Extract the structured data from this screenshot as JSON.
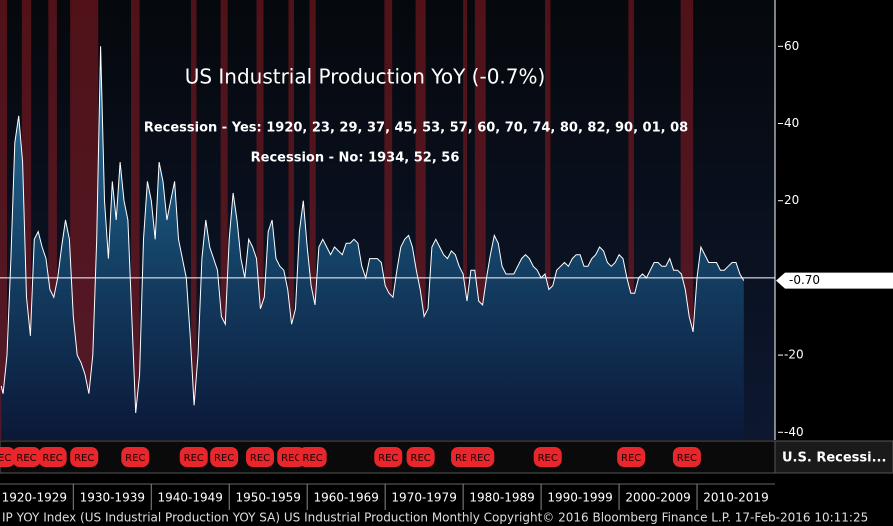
{
  "chart_data": {
    "type": "area",
    "title": "US Industrial Production YoY (-0.7%)",
    "annotations": [
      "Recession - Yes: 1920, 23, 29, 37, 45, 53, 57, 60, 70, 74, 80, 82, 90, 01, 08",
      "Recession - No: 1934, 52, 56"
    ],
    "footer": "IP YOY Index (US Industrial Production YOY SA) US Industrial Production  Monthly   Copyright© 2016 Bloomberg Finance L.P.    17-Feb-2016 10:11:25",
    "recession_label": "REC",
    "recession_legend": "U.S. Recessi...",
    "recession_color": "#8e1c22",
    "line_color": "#ffffff",
    "area_color": "#1d5f86",
    "last_label": {
      "value": -0.7,
      "label": "-0.70"
    },
    "xlim": [
      1920.6,
      2020
    ],
    "ylim": [
      -42,
      72
    ],
    "yticks": [
      -40,
      -20,
      20,
      40,
      60
    ],
    "xticks": [
      {
        "value": 1920,
        "label": "1920-1929"
      },
      {
        "value": 1930,
        "label": "1930-1939"
      },
      {
        "value": 1940,
        "label": "1940-1949"
      },
      {
        "value": 1950,
        "label": "1950-1959"
      },
      {
        "value": 1960,
        "label": "1960-1969"
      },
      {
        "value": 1970,
        "label": "1970-1979"
      },
      {
        "value": 1980,
        "label": "1980-1989"
      },
      {
        "value": 1990,
        "label": "1990-1999"
      },
      {
        "value": 2000,
        "label": "2000-2009"
      },
      {
        "value": 2010,
        "label": "2010-2019"
      }
    ],
    "recessions": [
      [
        1920.0,
        1921.5
      ],
      [
        1923.4,
        1924.6
      ],
      [
        1926.8,
        1927.9
      ],
      [
        1929.6,
        1933.2
      ],
      [
        1937.4,
        1938.5
      ],
      [
        1945.1,
        1945.8
      ],
      [
        1948.9,
        1949.8
      ],
      [
        1953.5,
        1954.4
      ],
      [
        1957.6,
        1958.3
      ],
      [
        1960.3,
        1961.1
      ],
      [
        1969.9,
        1970.9
      ],
      [
        1973.9,
        1975.2
      ],
      [
        1980.0,
        1980.5
      ],
      [
        1981.5,
        1982.9
      ],
      [
        1990.5,
        1991.2
      ],
      [
        2001.2,
        2001.9
      ],
      [
        2007.9,
        2009.5
      ]
    ],
    "x": [
      1920.75,
      1921,
      1921.5,
      1922,
      1922.5,
      1923,
      1923.5,
      1924,
      1924.5,
      1925,
      1925.5,
      1926,
      1926.5,
      1927,
      1927.5,
      1928,
      1928.5,
      1929,
      1929.5,
      1930,
      1930.5,
      1931,
      1931.5,
      1932,
      1932.5,
      1933,
      1933.5,
      1934,
      1934.5,
      1935,
      1935.5,
      1936,
      1936.5,
      1937,
      1937.5,
      1938,
      1938.5,
      1939,
      1939.5,
      1940,
      1940.5,
      1941,
      1941.5,
      1942,
      1942.5,
      1943,
      1943.5,
      1944,
      1944.5,
      1945,
      1945.5,
      1946,
      1946.5,
      1947,
      1947.5,
      1948,
      1948.5,
      1949,
      1949.5,
      1950,
      1950.5,
      1951,
      1951.5,
      1952,
      1952.5,
      1953,
      1953.5,
      1954,
      1954.5,
      1955,
      1955.5,
      1956,
      1956.5,
      1957,
      1957.5,
      1958,
      1958.5,
      1959,
      1959.5,
      1960,
      1960.5,
      1961,
      1961.5,
      1962,
      1962.5,
      1963,
      1963.5,
      1964,
      1964.5,
      1965,
      1965.5,
      1966,
      1966.5,
      1967,
      1967.5,
      1968,
      1968.5,
      1969,
      1969.5,
      1970,
      1970.5,
      1971,
      1971.5,
      1972,
      1972.5,
      1973,
      1973.5,
      1974,
      1974.5,
      1975,
      1975.5,
      1976,
      1976.5,
      1977,
      1977.5,
      1978,
      1978.5,
      1979,
      1979.5,
      1980,
      1980.5,
      1981,
      1981.5,
      1982,
      1982.5,
      1983,
      1983.5,
      1984,
      1984.5,
      1985,
      1985.5,
      1986,
      1986.5,
      1987,
      1987.5,
      1988,
      1988.5,
      1989,
      1989.5,
      1990,
      1990.5,
      1991,
      1991.5,
      1992,
      1992.5,
      1993,
      1993.5,
      1994,
      1994.5,
      1995,
      1995.5,
      1996,
      1996.5,
      1997,
      1997.5,
      1998,
      1998.5,
      1999,
      1999.5,
      2000,
      2000.5,
      2001,
      2001.5,
      2002,
      2002.5,
      2003,
      2003.5,
      2004,
      2004.5,
      2005,
      2005.5,
      2006,
      2006.5,
      2007,
      2007.5,
      2008,
      2008.5,
      2009,
      2009.5,
      2010,
      2010.5,
      2011,
      2011.5,
      2012,
      2012.5,
      2013,
      2013.5,
      2014,
      2014.5,
      2015,
      2015.5,
      2016
    ],
    "values": [
      -28,
      -30,
      -20,
      5,
      35,
      42,
      30,
      -5,
      -15,
      10,
      12,
      8,
      5,
      -3,
      -5,
      0,
      8,
      15,
      10,
      -10,
      -20,
      -22,
      -25,
      -30,
      -20,
      10,
      60,
      20,
      5,
      25,
      15,
      30,
      20,
      15,
      -10,
      -35,
      -25,
      10,
      25,
      20,
      10,
      30,
      25,
      15,
      20,
      25,
      10,
      5,
      0,
      -15,
      -33,
      -20,
      5,
      15,
      8,
      5,
      2,
      -10,
      -12,
      10,
      22,
      15,
      5,
      0,
      10,
      8,
      5,
      -8,
      -5,
      12,
      15,
      5,
      3,
      2,
      -3,
      -12,
      -8,
      12,
      20,
      8,
      -2,
      -7,
      8,
      10,
      8,
      6,
      8,
      7,
      6,
      9,
      9,
      10,
      9,
      3,
      0,
      5,
      5,
      5,
      4,
      -2,
      -4,
      -5,
      2,
      8,
      10,
      11,
      8,
      2,
      -3,
      -10,
      -8,
      8,
      10,
      8,
      6,
      5,
      7,
      6,
      3,
      1,
      -6,
      2,
      2,
      -6,
      -7,
      0,
      6,
      11,
      9,
      3,
      1,
      1,
      1,
      3,
      5,
      6,
      5,
      3,
      2,
      0,
      1,
      -3,
      -2,
      2,
      3,
      4,
      3,
      5,
      6,
      6,
      3,
      3,
      5,
      6,
      8,
      7,
      4,
      3,
      4,
      6,
      5,
      0,
      -4,
      -4,
      0,
      1,
      0,
      2,
      4,
      4,
      3,
      3,
      5,
      2,
      2,
      1,
      -3,
      -10,
      -14,
      0,
      8,
      6,
      4,
      4,
      4,
      2,
      2,
      3,
      4,
      4,
      1,
      -0.7
    ]
  }
}
